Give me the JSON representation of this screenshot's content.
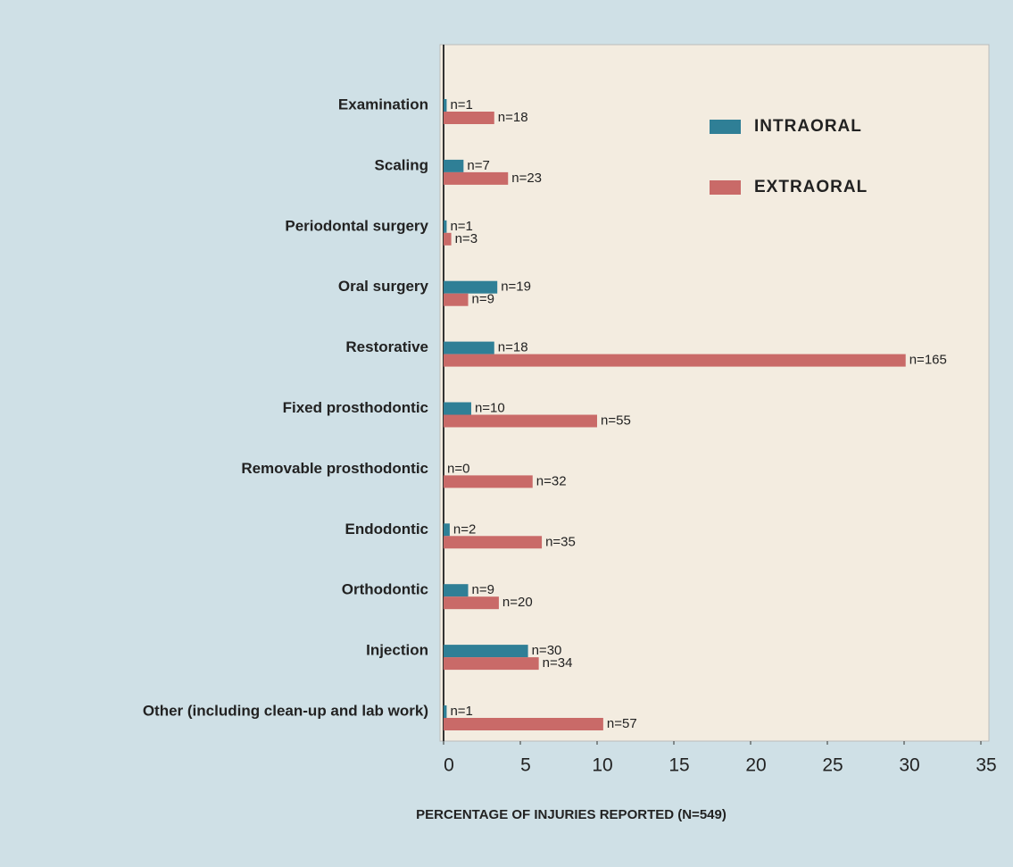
{
  "chart_data": {
    "type": "hbar",
    "x_label": "PERCENTAGE OF INJURIES REPORTED (N=549)",
    "categories": [
      "Examination",
      "Scaling",
      "Periodontal surgery",
      "Oral surgery",
      "Restorative",
      "Fixed prosthodontic",
      "Removable prosthodontic",
      "Endodontic",
      "Orthodontic",
      "Injection",
      "Other (including clean-up and lab work)"
    ],
    "series": [
      {
        "name": "INTRAORAL",
        "color": "#2f7f96",
        "values": [
          0.2,
          1.3,
          0.2,
          3.5,
          3.3,
          1.8,
          0,
          0.4,
          1.6,
          5.5,
          0.2
        ],
        "value_labels": [
          "n=1",
          "n=7",
          "n=1",
          "n=19",
          "n=18",
          "n=10",
          "n=0",
          "n=2",
          "n=9",
          "n=30",
          "n=1"
        ]
      },
      {
        "name": "EXTRAORAL",
        "color": "#c96a68",
        "values": [
          3.3,
          4.2,
          0.5,
          1.6,
          30.1,
          10.0,
          5.8,
          6.4,
          3.6,
          6.2,
          10.4
        ],
        "value_labels": [
          "n=18",
          "n=23",
          "n=3",
          "n=9",
          "n=165",
          "n=55",
          "n=32",
          "n=35",
          "n=20",
          "n=34",
          "n=57"
        ]
      }
    ],
    "xlim": [
      0,
      35
    ],
    "xticks": [
      0,
      5,
      10,
      15,
      20,
      25,
      30,
      35
    ],
    "grid": false,
    "legend": "upper right"
  }
}
